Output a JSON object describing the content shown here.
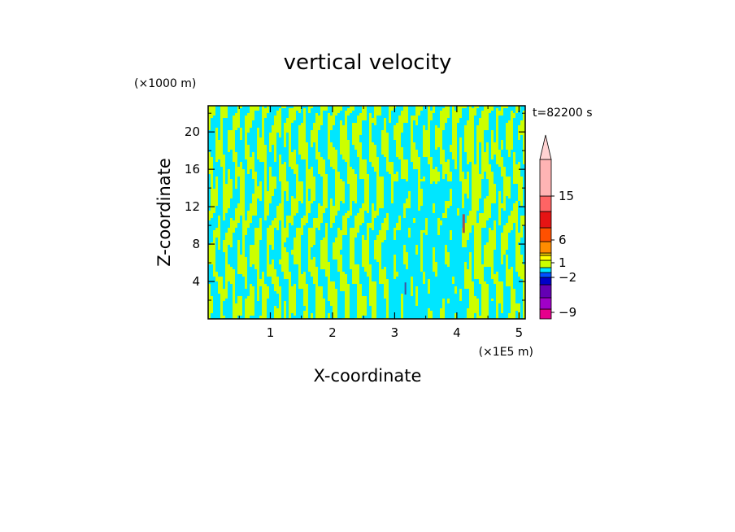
{
  "chart_data": {
    "type": "heatmap",
    "title": "vertical velocity",
    "xlabel": "X-coordinate",
    "ylabel": "Z-coordinate",
    "x_unit": "(×1E5 m)",
    "y_unit": "(×1000 m)",
    "time_label": "t=82200 s",
    "xlim": [
      0,
      5.1
    ],
    "ylim": [
      0,
      22.8
    ],
    "x_ticks": [
      1,
      2,
      3,
      4,
      5
    ],
    "y_ticks": [
      4,
      8,
      12,
      16,
      20
    ],
    "colorbar": {
      "tick_labels": [
        "15",
        "6",
        "1",
        "−2",
        "−9"
      ],
      "levels": [
        -12,
        -9,
        -6,
        -3,
        -2,
        -1,
        0,
        1,
        2,
        3,
        6,
        9,
        12,
        15,
        20
      ],
      "colors": [
        "#e6008c",
        "#a000c8",
        "#6400b4",
        "#0000c8",
        "#0050ff",
        "#00e6ff",
        "#ccff00",
        "#ffff00",
        "#f0c800",
        "#ff8c00",
        "#ff5000",
        "#e61414",
        "#ff6464",
        "#ffb4b4",
        "#ffd2d2"
      ],
      "extend_max": true
    },
    "field": {
      "dominant_colors": [
        "#00e6ff",
        "#ccff00"
      ],
      "notes": "Alternating cyan (weak downdraft) and yellow-green (weak updraft) streaks across the domain"
    }
  },
  "colors": {
    "cyan": "#00e6ff",
    "yellow_green": "#ccff00",
    "axis": "#000000"
  }
}
